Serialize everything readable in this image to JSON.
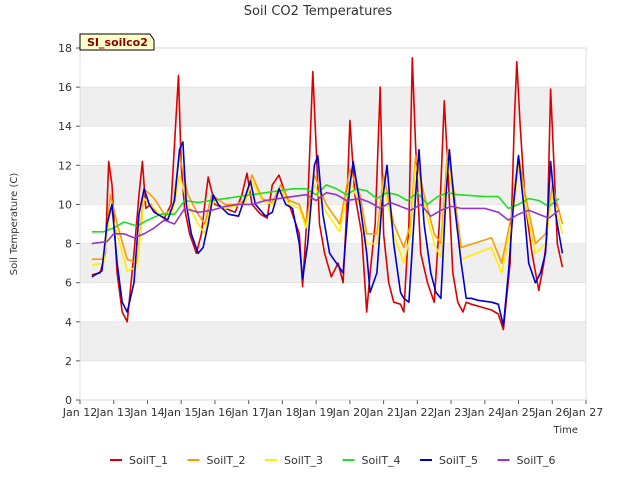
{
  "chart_data": {
    "type": "line",
    "title": "Soil CO2 Temperatures",
    "xlabel": "Time",
    "ylabel": "Soil Temperature (C)",
    "site_label": "SI_soilco2",
    "ylim": [
      0,
      18
    ],
    "yticks": [
      0,
      2,
      4,
      6,
      8,
      10,
      12,
      14,
      16,
      18
    ],
    "xlim": [
      12,
      27
    ],
    "xticks": [
      12,
      13,
      14,
      15,
      16,
      17,
      18,
      19,
      20,
      21,
      22,
      23,
      24,
      25,
      26,
      27
    ],
    "xtick_labels": [
      "Jan 12",
      "Jan 13",
      "Jan 14",
      "Jan 15",
      "Jan 16",
      "Jan 17",
      "Jan 18",
      "Jan 19",
      "Jan 20",
      "Jan 21",
      "Jan 22",
      "Jan 23",
      "Jan 24",
      "Jan 25",
      "Jan 26",
      "Jan 27"
    ],
    "grid": "horizontal bands",
    "legend_position": "bottom",
    "series": [
      {
        "name": "SoilT_1",
        "color": "#dd0000",
        "x": [
          12.35,
          12.6,
          12.75,
          12.85,
          12.95,
          13.1,
          13.25,
          13.4,
          13.6,
          13.75,
          13.85,
          13.95,
          14.1,
          14.3,
          14.5,
          14.7,
          14.85,
          14.92,
          15.0,
          15.1,
          15.25,
          15.45,
          15.6,
          15.7,
          15.8,
          16.0,
          16.3,
          16.6,
          16.8,
          16.95,
          17.1,
          17.35,
          17.55,
          17.7,
          17.9,
          18.1,
          18.3,
          18.5,
          18.6,
          18.75,
          18.9,
          19.0,
          19.1,
          19.25,
          19.45,
          19.65,
          19.8,
          19.9,
          20.0,
          20.15,
          20.35,
          20.5,
          20.6,
          20.75,
          20.9,
          21.0,
          21.15,
          21.3,
          21.5,
          21.6,
          21.75,
          21.85,
          21.95,
          22.1,
          22.3,
          22.5,
          22.65,
          22.8,
          22.9,
          23.05,
          23.2,
          23.35,
          23.45,
          23.6,
          23.8,
          24.0,
          24.2,
          24.4,
          24.55,
          24.75,
          24.88,
          24.95,
          25.05,
          25.2,
          25.4,
          25.6,
          25.75,
          25.85,
          25.95,
          26.05,
          26.15,
          26.3
        ],
        "y": [
          6.4,
          6.5,
          7.5,
          12.2,
          11.0,
          6.5,
          4.5,
          4.0,
          7.5,
          10.5,
          12.2,
          9.8,
          10.0,
          9.5,
          9.3,
          10.0,
          14.5,
          16.6,
          12.0,
          9.8,
          8.5,
          7.5,
          8.5,
          10.0,
          11.4,
          10.0,
          9.8,
          9.6,
          10.5,
          11.6,
          10.0,
          9.5,
          9.3,
          11.0,
          11.5,
          10.5,
          9.5,
          8.5,
          5.8,
          10.0,
          16.8,
          13.0,
          9.0,
          7.5,
          6.3,
          7.0,
          6.0,
          9.5,
          14.3,
          10.5,
          8.5,
          4.5,
          6.5,
          9.0,
          16.0,
          8.5,
          6.0,
          5.0,
          4.9,
          4.5,
          9.0,
          17.5,
          13.0,
          7.5,
          6.0,
          5.0,
          9.0,
          15.3,
          12.0,
          6.5,
          5.0,
          4.5,
          5.0,
          4.9,
          4.8,
          4.7,
          4.6,
          4.4,
          3.6,
          7.0,
          14.5,
          17.3,
          14.0,
          10.0,
          7.5,
          5.6,
          7.0,
          8.5,
          15.9,
          12.0,
          8.0,
          6.8
        ]
      },
      {
        "name": "SoilT_2",
        "color": "#ff9900",
        "x": [
          12.35,
          12.7,
          12.9,
          13.1,
          13.4,
          13.7,
          13.9,
          14.2,
          14.5,
          14.75,
          14.95,
          15.2,
          15.5,
          15.7,
          15.9,
          16.3,
          16.6,
          16.9,
          17.1,
          17.4,
          17.7,
          17.95,
          18.2,
          18.5,
          18.7,
          18.95,
          19.3,
          19.7,
          20.0,
          20.3,
          20.5,
          20.8,
          21.0,
          21.3,
          21.6,
          21.8,
          21.95,
          22.2,
          22.5,
          22.7,
          22.9,
          23.1,
          23.3,
          24.2,
          24.5,
          24.8,
          25.0,
          25.2,
          25.5,
          25.8,
          26.0,
          26.3
        ],
        "y": [
          7.2,
          7.2,
          10.5,
          9.0,
          7.2,
          7.0,
          10.8,
          10.3,
          9.5,
          9.8,
          12.5,
          10.5,
          9.5,
          9.0,
          10.5,
          10.0,
          10.0,
          10.2,
          11.5,
          10.3,
          10.1,
          11.0,
          10.2,
          10.0,
          9.0,
          11.5,
          10.0,
          9.0,
          11.8,
          10.5,
          8.5,
          8.5,
          11.5,
          9.0,
          7.8,
          9.0,
          12.5,
          10.5,
          8.5,
          8.0,
          12.8,
          10.5,
          7.8,
          8.3,
          7.0,
          9.5,
          12.5,
          10.5,
          8.0,
          8.5,
          11.0,
          9.0
        ]
      },
      {
        "name": "SoilT_3",
        "color": "#ffee00",
        "x": [
          12.35,
          12.7,
          12.9,
          13.1,
          13.4,
          13.7,
          13.9,
          14.2,
          14.5,
          14.75,
          14.95,
          15.2,
          15.5,
          15.7,
          15.9,
          16.3,
          16.6,
          16.9,
          17.1,
          17.4,
          17.7,
          17.95,
          18.2,
          18.5,
          18.7,
          18.95,
          19.3,
          19.7,
          20.0,
          20.3,
          20.5,
          20.8,
          21.0,
          21.3,
          21.6,
          21.8,
          21.95,
          22.2,
          22.5,
          22.7,
          22.9,
          23.1,
          23.3,
          24.2,
          24.5,
          24.8,
          25.0,
          25.2,
          25.5,
          25.8,
          26.0,
          26.3
        ],
        "y": [
          6.9,
          7.0,
          9.8,
          8.5,
          6.6,
          6.8,
          10.3,
          9.8,
          9.2,
          9.6,
          11.5,
          10.0,
          9.0,
          8.5,
          10.2,
          9.8,
          9.9,
          10.1,
          11.2,
          10.2,
          10.0,
          10.8,
          10.0,
          9.8,
          8.8,
          11.0,
          9.6,
          8.6,
          11.2,
          10.0,
          8.0,
          8.0,
          11.0,
          8.5,
          7.0,
          8.5,
          12.0,
          10.0,
          8.0,
          7.3,
          12.2,
          10.0,
          7.2,
          7.8,
          6.5,
          9.0,
          12.0,
          10.0,
          7.5,
          8.0,
          10.5,
          8.5
        ]
      },
      {
        "name": "SoilT_4",
        "color": "#22dd22",
        "x": [
          12.35,
          12.7,
          13.0,
          13.3,
          13.7,
          14.0,
          14.4,
          14.8,
          15.1,
          15.5,
          15.9,
          16.3,
          16.7,
          17.1,
          17.5,
          17.9,
          18.3,
          18.7,
          19.0,
          19.3,
          19.6,
          19.9,
          20.2,
          20.5,
          20.8,
          21.1,
          21.4,
          21.7,
          22.0,
          22.3,
          22.6,
          22.9,
          23.2,
          24.0,
          24.4,
          24.7,
          25.0,
          25.3,
          25.6,
          25.9,
          26.2
        ],
        "y": [
          8.6,
          8.6,
          8.8,
          9.1,
          8.9,
          9.2,
          9.5,
          9.5,
          10.2,
          10.1,
          10.2,
          10.3,
          10.4,
          10.5,
          10.6,
          10.7,
          10.8,
          10.8,
          10.5,
          11.0,
          10.8,
          10.5,
          10.8,
          10.7,
          10.3,
          10.6,
          10.5,
          10.2,
          10.6,
          10.0,
          10.4,
          10.6,
          10.5,
          10.4,
          10.4,
          9.8,
          10.0,
          10.3,
          10.2,
          9.9,
          10.3
        ]
      },
      {
        "name": "SoilT_5",
        "color": "#0000cc",
        "x": [
          12.35,
          12.65,
          12.8,
          12.95,
          13.1,
          13.25,
          13.4,
          13.6,
          13.75,
          13.9,
          14.05,
          14.2,
          14.4,
          14.6,
          14.8,
          14.95,
          15.05,
          15.15,
          15.3,
          15.5,
          15.65,
          15.8,
          15.95,
          16.1,
          16.4,
          16.7,
          16.9,
          17.05,
          17.2,
          17.5,
          17.7,
          17.9,
          18.1,
          18.3,
          18.5,
          18.6,
          18.75,
          18.95,
          19.05,
          19.2,
          19.4,
          19.6,
          19.8,
          20.0,
          20.1,
          20.3,
          20.5,
          20.6,
          20.8,
          20.95,
          21.1,
          21.3,
          21.5,
          21.6,
          21.75,
          21.95,
          22.05,
          22.2,
          22.4,
          22.55,
          22.7,
          22.85,
          22.95,
          23.1,
          23.3,
          23.45,
          23.6,
          23.8,
          24.2,
          24.4,
          24.55,
          24.7,
          24.85,
          25.0,
          25.15,
          25.3,
          25.5,
          25.65,
          25.8,
          25.95,
          26.1,
          26.3
        ],
        "y": [
          6.3,
          6.6,
          9.0,
          10.0,
          7.0,
          5.0,
          4.5,
          6.0,
          9.5,
          10.8,
          10.0,
          9.6,
          9.4,
          9.2,
          10.2,
          12.8,
          13.2,
          10.0,
          8.5,
          7.5,
          7.8,
          9.0,
          10.5,
          10.0,
          9.5,
          9.4,
          10.4,
          11.2,
          10.0,
          9.4,
          9.6,
          10.8,
          10.0,
          9.8,
          8.0,
          6.2,
          8.0,
          12.0,
          12.5,
          9.5,
          7.5,
          7.0,
          6.5,
          11.0,
          12.2,
          10.0,
          7.5,
          5.5,
          6.5,
          10.0,
          12.0,
          8.0,
          5.5,
          5.2,
          5.0,
          10.5,
          12.8,
          9.0,
          6.5,
          5.5,
          5.2,
          10.5,
          12.8,
          10.0,
          7.0,
          5.2,
          5.2,
          5.1,
          5.0,
          4.9,
          3.8,
          6.5,
          10.0,
          12.5,
          10.0,
          7.0,
          6.0,
          6.5,
          7.5,
          12.2,
          9.5,
          7.5
        ]
      },
      {
        "name": "SoilT_6",
        "color": "#9933cc",
        "x": [
          12.35,
          12.8,
          13.0,
          13.3,
          13.6,
          13.9,
          14.2,
          14.5,
          14.8,
          15.1,
          15.5,
          15.9,
          16.3,
          16.7,
          17.1,
          17.5,
          17.9,
          18.3,
          18.7,
          19.0,
          19.3,
          19.6,
          19.9,
          20.3,
          20.6,
          20.9,
          21.2,
          21.5,
          21.8,
          22.1,
          22.4,
          22.7,
          23.0,
          23.3,
          24.0,
          24.4,
          24.7,
          25.0,
          25.3,
          25.6,
          25.9,
          26.2
        ],
        "y": [
          8.0,
          8.1,
          8.5,
          8.5,
          8.3,
          8.5,
          8.8,
          9.2,
          9.0,
          9.8,
          9.6,
          9.7,
          9.9,
          10.0,
          10.0,
          10.2,
          10.3,
          10.4,
          10.5,
          10.2,
          10.6,
          10.5,
          10.2,
          10.3,
          10.1,
          9.8,
          10.1,
          9.9,
          9.7,
          10.0,
          9.4,
          9.7,
          9.9,
          9.8,
          9.8,
          9.6,
          9.2,
          9.5,
          9.7,
          9.5,
          9.3,
          9.7
        ]
      }
    ]
  }
}
